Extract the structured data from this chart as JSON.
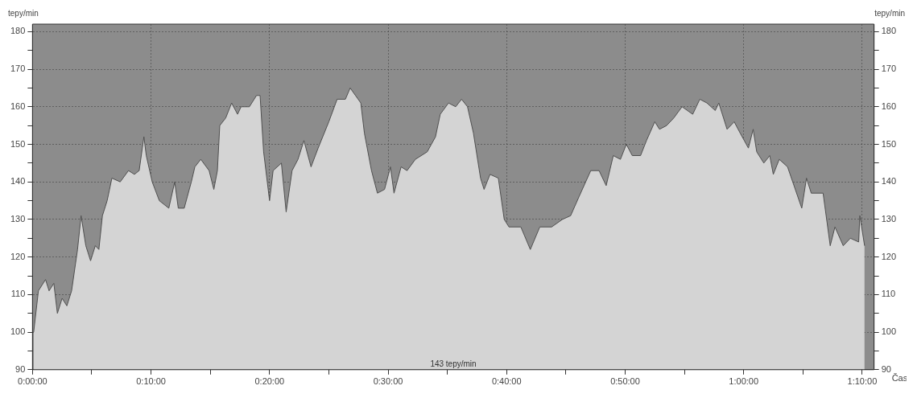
{
  "chart_data": {
    "type": "area",
    "xlabel": "Čas",
    "ylabel": "tepy/min",
    "y2label": "tepy/min",
    "annotations": [
      "143 tepy/min"
    ],
    "xlim": [
      0,
      71
    ],
    "xticks": [
      {
        "value": 0,
        "label": "0:00:00"
      },
      {
        "value": 5,
        "label": null
      },
      {
        "value": 10,
        "label": "0:10:00"
      },
      {
        "value": 15,
        "label": null
      },
      {
        "value": 20,
        "label": "0:20:00"
      },
      {
        "value": 25,
        "label": null
      },
      {
        "value": 30,
        "label": "0:30:00"
      },
      {
        "value": 35,
        "label": null
      },
      {
        "value": 40,
        "label": "0:40:00"
      },
      {
        "value": 45,
        "label": null
      },
      {
        "value": 50,
        "label": "0:50:00"
      },
      {
        "value": 55,
        "label": null
      },
      {
        "value": 60,
        "label": "1:00:00"
      },
      {
        "value": 65,
        "label": null
      },
      {
        "value": 70,
        "label": "1:10:00"
      }
    ],
    "ylim": [
      90,
      182
    ],
    "yticks": [
      90,
      {
        "value": 95,
        "label": null
      },
      100,
      {
        "value": 105,
        "label": null
      },
      110,
      {
        "value": 115,
        "label": null
      },
      120,
      {
        "value": 125,
        "label": null
      },
      130,
      {
        "value": 135,
        "label": null
      },
      140,
      {
        "value": 145,
        "label": null
      },
      150,
      {
        "value": 155,
        "label": null
      },
      160,
      {
        "value": 165,
        "label": null
      },
      170,
      {
        "value": 175,
        "label": null
      },
      180
    ],
    "y2lim": [
      90,
      182
    ],
    "y2ticks": [
      90,
      {
        "value": 95,
        "label": null
      },
      100,
      {
        "value": 105,
        "label": null
      },
      110,
      {
        "value": 115,
        "label": null
      },
      120,
      {
        "value": 125,
        "label": null
      },
      130,
      {
        "value": 135,
        "label": null
      },
      140,
      {
        "value": 145,
        "label": null
      },
      150,
      {
        "value": 155,
        "label": null
      },
      160,
      {
        "value": 165,
        "label": null
      },
      170,
      {
        "value": 175,
        "label": null
      },
      180
    ],
    "grid": true,
    "legend": false,
    "marker": "none",
    "line_style": "solid",
    "series": [
      {
        "color": "#d4d4d4",
        "x": [
          0.1,
          0.5,
          1.1,
          1.4,
          1.8,
          2.1,
          2.5,
          2.9,
          3.3,
          3.8,
          4.1,
          4.5,
          4.9,
          5.3,
          5.6,
          5.9,
          6.3,
          6.7,
          7.4,
          8.1,
          8.6,
          9.0,
          9.4,
          9.6,
          10.1,
          10.7,
          11.5,
          12.0,
          12.3,
          12.8,
          13.4,
          13.7,
          14.2,
          14.9,
          15.3,
          15.6,
          15.8,
          16.3,
          16.8,
          17.3,
          17.6,
          18.3,
          18.9,
          19.2,
          19.5,
          20.0,
          20.3,
          21.0,
          21.4,
          21.9,
          22.4,
          22.9,
          23.5,
          24.1,
          25.0,
          25.7,
          26.4,
          26.8,
          27.7,
          28.0,
          28.6,
          29.1,
          29.7,
          30.2,
          30.5,
          31.1,
          31.6,
          32.3,
          33.3,
          34.0,
          34.4,
          35.1,
          35.7,
          36.2,
          36.7,
          37.2,
          37.8,
          38.1,
          38.6,
          39.3,
          39.8,
          40.2,
          41.2,
          42.0,
          42.8,
          43.8,
          44.7,
          45.4,
          46.1,
          47.1,
          47.8,
          48.4,
          49.0,
          49.6,
          50.1,
          50.6,
          51.3,
          51.8,
          52.5,
          52.9,
          53.5,
          54.1,
          54.8,
          55.7,
          56.3,
          56.9,
          57.6,
          57.9,
          58.6,
          59.2,
          59.7,
          60.4,
          60.8,
          61.1,
          61.7,
          62.2,
          62.5,
          63.0,
          63.7,
          64.9,
          65.3,
          65.7,
          66.7,
          67.3,
          67.7,
          68.4,
          69.0,
          69.7,
          69.8,
          70.2
        ],
        "values": [
          100,
          111,
          114,
          111,
          113,
          105,
          109,
          107,
          111,
          122,
          131,
          123,
          119,
          123,
          122,
          131,
          135,
          141,
          140,
          143,
          142,
          143,
          152,
          147,
          140,
          135,
          133,
          140,
          133,
          133,
          140,
          144,
          146,
          143,
          138,
          143,
          155,
          157,
          161,
          158,
          160,
          160,
          163,
          163,
          148,
          135,
          143,
          145,
          132,
          143,
          146,
          151,
          144,
          149,
          156,
          162,
          162,
          165,
          161,
          153,
          143,
          137,
          138,
          144,
          137,
          144,
          143,
          146,
          148,
          152,
          158,
          161,
          160,
          162,
          160,
          153,
          141,
          138,
          142,
          141,
          130,
          128,
          128,
          122,
          128,
          128,
          130,
          131,
          136,
          143,
          143,
          139,
          147,
          146,
          150,
          147,
          147,
          151,
          156,
          154,
          155,
          157,
          160,
          158,
          162,
          161,
          159,
          161,
          154,
          156,
          153,
          149,
          154,
          148,
          145,
          147,
          142,
          146,
          144,
          133,
          141,
          137,
          137,
          123,
          128,
          123,
          125,
          124,
          131,
          123
        ]
      }
    ]
  }
}
